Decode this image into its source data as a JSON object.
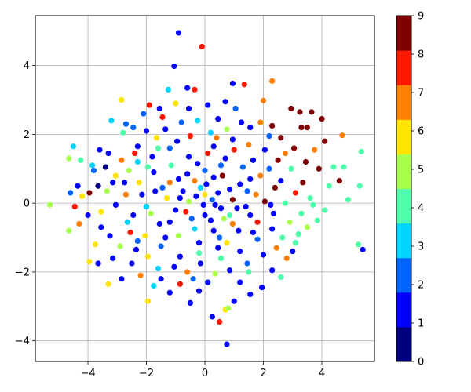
{
  "chart_data": {
    "type": "scatter",
    "title": "",
    "xlabel": "",
    "ylabel": "",
    "xlim": [
      -5.8,
      5.8
    ],
    "ylim": [
      -4.6,
      5.45
    ],
    "xticks": [
      -4,
      -2,
      0,
      2,
      4
    ],
    "xtick_labels": [
      "−4",
      "−2",
      "0",
      "2",
      "4"
    ],
    "yticks": [
      -4,
      -2,
      0,
      2,
      4
    ],
    "ytick_labels": [
      "−4",
      "−2",
      "0",
      "2",
      "4"
    ],
    "grid": true,
    "colormap": "jet",
    "color_range": [
      0,
      9
    ],
    "colorbar_ticks": [
      0,
      1,
      2,
      3,
      4,
      5,
      6,
      7,
      8,
      9
    ],
    "colorbar_tick_labels": [
      "0",
      "1",
      "2",
      "3",
      "4",
      "5",
      "6",
      "7",
      "8",
      "9"
    ],
    "class_colors": [
      "#00007f",
      "#0000ff",
      "#0063ff",
      "#00d4ff",
      "#4dffaa",
      "#aaff4d",
      "#ffe500",
      "#ff7f00",
      "#ff1700",
      "#7f0000"
    ],
    "points": [
      {
        "x": -0.9,
        "y": 4.95,
        "c": 1
      },
      {
        "x": -1.05,
        "y": 3.98,
        "c": 1
      },
      {
        "x": -0.1,
        "y": 4.55,
        "c": 8
      },
      {
        "x": 0.95,
        "y": 3.48,
        "c": 1
      },
      {
        "x": 1.35,
        "y": 3.45,
        "c": 8
      },
      {
        "x": 2.3,
        "y": 3.55,
        "c": 7
      },
      {
        "x": 2.0,
        "y": 2.98,
        "c": 7
      },
      {
        "x": -2.85,
        "y": 3.0,
        "c": 6
      },
      {
        "x": -1.25,
        "y": 3.3,
        "c": 3
      },
      {
        "x": -0.6,
        "y": 3.35,
        "c": 1
      },
      {
        "x": -0.35,
        "y": 3.3,
        "c": 8
      },
      {
        "x": 0.7,
        "y": 2.95,
        "c": 1
      },
      {
        "x": 2.95,
        "y": 2.75,
        "c": 9
      },
      {
        "x": 3.25,
        "y": 2.65,
        "c": 9
      },
      {
        "x": 3.65,
        "y": 2.65,
        "c": 9
      },
      {
        "x": 3.3,
        "y": 2.2,
        "c": 9
      },
      {
        "x": 3.5,
        "y": 2.2,
        "c": 9
      },
      {
        "x": 4.0,
        "y": 2.45,
        "c": 9
      },
      {
        "x": 4.1,
        "y": 1.8,
        "c": 9
      },
      {
        "x": 4.7,
        "y": 1.97,
        "c": 7
      },
      {
        "x": 2.3,
        "y": 2.25,
        "c": 9
      },
      {
        "x": 2.6,
        "y": 1.9,
        "c": 9
      },
      {
        "x": 3.05,
        "y": 1.6,
        "c": 9
      },
      {
        "x": 3.75,
        "y": 1.55,
        "c": 7
      },
      {
        "x": 3.9,
        "y": 1.0,
        "c": 9
      },
      {
        "x": 4.4,
        "y": 1.05,
        "c": 4
      },
      {
        "x": 4.75,
        "y": 1.05,
        "c": 4
      },
      {
        "x": 5.35,
        "y": 1.5,
        "c": 4
      },
      {
        "x": 4.25,
        "y": 0.5,
        "c": 4
      },
      {
        "x": 4.6,
        "y": 0.65,
        "c": 9
      },
      {
        "x": 4.9,
        "y": 0.1,
        "c": 4
      },
      {
        "x": 5.3,
        "y": 0.5,
        "c": 4
      },
      {
        "x": 4.1,
        "y": -0.2,
        "c": 4
      },
      {
        "x": 3.85,
        "y": -0.5,
        "c": 4
      },
      {
        "x": 5.25,
        "y": -1.2,
        "c": 4
      },
      {
        "x": 5.4,
        "y": -1.35,
        "c": 1
      },
      {
        "x": 3.2,
        "y": -0.9,
        "c": 4
      },
      {
        "x": 2.8,
        "y": -1.6,
        "c": 7
      },
      {
        "x": 2.6,
        "y": -2.15,
        "c": 4
      },
      {
        "x": 1.95,
        "y": -2.45,
        "c": 1
      },
      {
        "x": 1.0,
        "y": -2.85,
        "c": 1
      },
      {
        "x": 0.5,
        "y": -3.45,
        "c": 8
      },
      {
        "x": 0.7,
        "y": -3.1,
        "c": 6
      },
      {
        "x": 0.8,
        "y": -3.05,
        "c": 5
      },
      {
        "x": 0.75,
        "y": -4.1,
        "c": 1
      },
      {
        "x": 0.25,
        "y": -3.3,
        "c": 1
      },
      {
        "x": -0.5,
        "y": -2.9,
        "c": 1
      },
      {
        "x": -0.2,
        "y": -2.55,
        "c": 1
      },
      {
        "x": -1.2,
        "y": -2.6,
        "c": 1
      },
      {
        "x": -1.75,
        "y": -2.4,
        "c": 3
      },
      {
        "x": -1.95,
        "y": -2.85,
        "c": 6
      },
      {
        "x": -2.2,
        "y": -2.1,
        "c": 7
      },
      {
        "x": -2.85,
        "y": -2.2,
        "c": 1
      },
      {
        "x": -3.3,
        "y": -2.35,
        "c": 6
      },
      {
        "x": -3.65,
        "y": -1.75,
        "c": 1
      },
      {
        "x": -3.75,
        "y": -1.2,
        "c": 6
      },
      {
        "x": -3.95,
        "y": -1.7,
        "c": 6
      },
      {
        "x": -3.55,
        "y": -0.7,
        "c": 1
      },
      {
        "x": -4.3,
        "y": -0.6,
        "c": 7
      },
      {
        "x": -4.45,
        "y": -0.1,
        "c": 8
      },
      {
        "x": -4.65,
        "y": -0.8,
        "c": 5
      },
      {
        "x": -5.3,
        "y": -0.05,
        "c": 5
      },
      {
        "x": -4.0,
        "y": -0.35,
        "c": 1
      },
      {
        "x": -4.2,
        "y": 0.2,
        "c": 6
      },
      {
        "x": -4.35,
        "y": 0.5,
        "c": 1
      },
      {
        "x": -4.6,
        "y": 0.3,
        "c": 2
      },
      {
        "x": -3.95,
        "y": 0.3,
        "c": 9
      },
      {
        "x": -3.65,
        "y": 0.5,
        "c": 0
      },
      {
        "x": -4.25,
        "y": 1.25,
        "c": 4
      },
      {
        "x": -4.5,
        "y": 1.65,
        "c": 3
      },
      {
        "x": -4.65,
        "y": 1.3,
        "c": 5
      },
      {
        "x": -3.8,
        "y": 0.95,
        "c": 2
      },
      {
        "x": -3.85,
        "y": 1.1,
        "c": 3
      },
      {
        "x": -3.6,
        "y": 1.55,
        "c": 1
      },
      {
        "x": -3.3,
        "y": 1.45,
        "c": 1
      },
      {
        "x": -3.2,
        "y": 2.4,
        "c": 3
      },
      {
        "x": -2.8,
        "y": 2.05,
        "c": 4
      },
      {
        "x": -2.7,
        "y": 2.3,
        "c": 2
      },
      {
        "x": -2.45,
        "y": 2.2,
        "c": 2
      },
      {
        "x": -2.1,
        "y": 2.6,
        "c": 2
      },
      {
        "x": -1.9,
        "y": 2.85,
        "c": 8
      },
      {
        "x": -1.55,
        "y": 2.75,
        "c": 1
      },
      {
        "x": -1.0,
        "y": 2.9,
        "c": 6
      },
      {
        "x": -0.55,
        "y": 2.75,
        "c": 1
      },
      {
        "x": 0.1,
        "y": 2.85,
        "c": 1
      },
      {
        "x": 0.45,
        "y": 2.45,
        "c": 1
      },
      {
        "x": 1.05,
        "y": 2.75,
        "c": 2
      },
      {
        "x": 1.55,
        "y": 2.2,
        "c": 1
      },
      {
        "x": 1.9,
        "y": 2.35,
        "c": 7
      },
      {
        "x": 0.75,
        "y": 2.15,
        "c": 5
      },
      {
        "x": -1.45,
        "y": 2.5,
        "c": 8
      },
      {
        "x": -0.8,
        "y": 2.35,
        "c": 2
      },
      {
        "x": -2.3,
        "y": 1.65,
        "c": 1
      },
      {
        "x": -1.65,
        "y": 1.9,
        "c": 6
      },
      {
        "x": 3.0,
        "y": -1.4,
        "c": 1
      },
      {
        "x": 3.1,
        "y": -1.15,
        "c": 4
      },
      {
        "x": 2.45,
        "y": -1.3,
        "c": 7
      },
      {
        "x": 2.3,
        "y": -1.95,
        "c": 1
      },
      {
        "x": 1.5,
        "y": -2.0,
        "c": 4
      },
      {
        "x": 1.2,
        "y": -2.3,
        "c": 1
      },
      {
        "x": 1.55,
        "y": -2.65,
        "c": 1
      },
      {
        "x": 0.35,
        "y": -2.05,
        "c": 5
      },
      {
        "x": -0.4,
        "y": -2.2,
        "c": 2
      },
      {
        "x": -0.85,
        "y": -2.35,
        "c": 8
      },
      {
        "x": -1.5,
        "y": -2.2,
        "c": 1
      },
      {
        "x": -2.5,
        "y": -1.75,
        "c": 1
      },
      {
        "x": -3.15,
        "y": -1.6,
        "c": 1
      },
      {
        "x": -2.9,
        "y": -1.25,
        "c": 5
      },
      {
        "x": -3.25,
        "y": -0.95,
        "c": 1
      },
      {
        "x": -2.55,
        "y": -0.85,
        "c": 8
      },
      {
        "x": -3.35,
        "y": 0.35,
        "c": 5
      },
      {
        "x": -3.05,
        "y": 0.8,
        "c": 6
      },
      {
        "x": -2.6,
        "y": 0.95,
        "c": 5
      },
      {
        "x": -2.3,
        "y": 1.2,
        "c": 3
      },
      {
        "x": -1.8,
        "y": 1.35,
        "c": 1
      },
      {
        "x": -1.2,
        "y": 1.6,
        "c": 2
      },
      {
        "x": -0.5,
        "y": 1.95,
        "c": 8
      },
      {
        "x": 0.2,
        "y": 2.05,
        "c": 3
      },
      {
        "x": 0.95,
        "y": 1.85,
        "c": 1
      },
      {
        "x": 1.5,
        "y": 1.7,
        "c": 7
      },
      {
        "x": 2.05,
        "y": 1.55,
        "c": 1
      },
      {
        "x": 2.5,
        "y": 1.25,
        "c": 9
      },
      {
        "x": 2.95,
        "y": 1.0,
        "c": 4
      },
      {
        "x": 3.35,
        "y": 0.6,
        "c": 9
      },
      {
        "x": 3.6,
        "y": 0.15,
        "c": 4
      },
      {
        "x": 3.3,
        "y": -0.3,
        "c": 4
      },
      {
        "x": 2.9,
        "y": -0.55,
        "c": 5
      },
      {
        "x": 2.3,
        "y": -0.75,
        "c": 1
      },
      {
        "x": 1.8,
        "y": -1.05,
        "c": 2
      },
      {
        "x": 1.2,
        "y": -1.4,
        "c": 1
      },
      {
        "x": 0.55,
        "y": -1.6,
        "c": 4
      },
      {
        "x": -0.15,
        "y": -1.75,
        "c": 1
      },
      {
        "x": -0.85,
        "y": -1.55,
        "c": 1
      },
      {
        "x": -1.5,
        "y": -1.25,
        "c": 2
      },
      {
        "x": -2.05,
        "y": -0.95,
        "c": 6
      },
      {
        "x": -2.45,
        "y": -0.35,
        "c": 1
      },
      {
        "x": -2.7,
        "y": 0.25,
        "c": 7
      },
      {
        "x": -2.25,
        "y": 0.6,
        "c": 6
      },
      {
        "x": -1.75,
        "y": 0.9,
        "c": 1
      },
      {
        "x": -1.15,
        "y": 1.1,
        "c": 4
      },
      {
        "x": -0.55,
        "y": 1.35,
        "c": 1
      },
      {
        "x": 0.1,
        "y": 1.45,
        "c": 8
      },
      {
        "x": 0.7,
        "y": 1.3,
        "c": 1
      },
      {
        "x": 1.3,
        "y": 1.05,
        "c": 2
      },
      {
        "x": 1.9,
        "y": 0.8,
        "c": 7
      },
      {
        "x": 2.4,
        "y": 0.45,
        "c": 9
      },
      {
        "x": 2.75,
        "y": 0.0,
        "c": 4
      },
      {
        "x": 2.35,
        "y": -0.3,
        "c": 1
      },
      {
        "x": 1.8,
        "y": -0.55,
        "c": 8
      },
      {
        "x": 1.15,
        "y": -0.8,
        "c": 1
      },
      {
        "x": 0.5,
        "y": -1.0,
        "c": 2
      },
      {
        "x": -0.2,
        "y": -1.15,
        "c": 1
      },
      {
        "x": -0.9,
        "y": -0.95,
        "c": 5
      },
      {
        "x": -1.55,
        "y": -0.6,
        "c": 1
      },
      {
        "x": -2.0,
        "y": -0.1,
        "c": 3
      },
      {
        "x": -1.7,
        "y": 0.35,
        "c": 1
      },
      {
        "x": -1.2,
        "y": 0.6,
        "c": 7
      },
      {
        "x": -0.6,
        "y": 0.85,
        "c": 1
      },
      {
        "x": 0.0,
        "y": 0.95,
        "c": 2
      },
      {
        "x": 0.6,
        "y": 0.8,
        "c": 9
      },
      {
        "x": 1.2,
        "y": 0.55,
        "c": 1
      },
      {
        "x": 1.75,
        "y": 0.25,
        "c": 7
      },
      {
        "x": 1.4,
        "y": -0.1,
        "c": 1
      },
      {
        "x": 0.85,
        "y": -0.35,
        "c": 4
      },
      {
        "x": 0.2,
        "y": -0.5,
        "c": 1
      },
      {
        "x": -0.45,
        "y": -0.45,
        "c": 2
      },
      {
        "x": -1.0,
        "y": -0.2,
        "c": 1
      },
      {
        "x": -1.3,
        "y": 0.15,
        "c": 6
      },
      {
        "x": -0.75,
        "y": 0.35,
        "c": 1
      },
      {
        "x": -0.15,
        "y": 0.45,
        "c": 3
      },
      {
        "x": 0.45,
        "y": 0.3,
        "c": 1
      },
      {
        "x": 0.95,
        "y": 0.1,
        "c": 9
      },
      {
        "x": 0.55,
        "y": -0.15,
        "c": 1
      },
      {
        "x": -0.05,
        "y": -0.05,
        "c": 1
      },
      {
        "x": -0.55,
        "y": 0.05,
        "c": 5
      },
      {
        "x": -0.3,
        "y": 0.2,
        "c": 1
      },
      {
        "x": 0.25,
        "y": 0.1,
        "c": 2
      },
      {
        "x": 0.05,
        "y": 0.55,
        "c": 1
      },
      {
        "x": -1.6,
        "y": -1.9,
        "c": 3
      },
      {
        "x": -2.35,
        "y": -1.35,
        "c": 1
      },
      {
        "x": -3.55,
        "y": -0.25,
        "c": 6
      },
      {
        "x": -3.05,
        "y": -0.05,
        "c": 1
      },
      {
        "x": -2.85,
        "y": 1.25,
        "c": 7
      },
      {
        "x": -3.4,
        "y": 1.05,
        "c": 0
      },
      {
        "x": -2.0,
        "y": 2.1,
        "c": 1
      },
      {
        "x": -1.35,
        "y": 2.15,
        "c": 1
      },
      {
        "x": -0.25,
        "y": 2.4,
        "c": 3
      },
      {
        "x": 0.4,
        "y": 1.9,
        "c": 7
      },
      {
        "x": 1.25,
        "y": 2.35,
        "c": 1
      },
      {
        "x": 2.2,
        "y": 1.95,
        "c": 2
      },
      {
        "x": 2.75,
        "y": 1.45,
        "c": 7
      },
      {
        "x": 3.45,
        "y": 1.2,
        "c": 9
      },
      {
        "x": 3.1,
        "y": 0.3,
        "c": 8
      },
      {
        "x": 3.7,
        "y": -0.05,
        "c": 4
      },
      {
        "x": 3.5,
        "y": -0.7,
        "c": 5
      },
      {
        "x": 2.65,
        "y": -1.0,
        "c": 4
      },
      {
        "x": 2.0,
        "y": -1.5,
        "c": 1
      },
      {
        "x": 1.45,
        "y": -1.75,
        "c": 2
      },
      {
        "x": 0.85,
        "y": -1.95,
        "c": 1
      },
      {
        "x": 0.1,
        "y": -2.3,
        "c": 1
      },
      {
        "x": -0.6,
        "y": -2.0,
        "c": 7
      },
      {
        "x": -1.05,
        "y": -1.85,
        "c": 1
      },
      {
        "x": -1.95,
        "y": -1.55,
        "c": 6
      },
      {
        "x": -2.65,
        "y": -0.55,
        "c": 3
      },
      {
        "x": -3.15,
        "y": 0.6,
        "c": 1
      },
      {
        "x": -2.4,
        "y": 1.45,
        "c": 8
      },
      {
        "x": -1.6,
        "y": 1.6,
        "c": 4
      },
      {
        "x": -0.95,
        "y": 1.8,
        "c": 1
      },
      {
        "x": 0.3,
        "y": 1.65,
        "c": 1
      },
      {
        "x": 1.0,
        "y": 1.55,
        "c": 8
      },
      {
        "x": 1.65,
        "y": 1.25,
        "c": 1
      },
      {
        "x": 2.2,
        "y": 1.0,
        "c": 2
      },
      {
        "x": 2.6,
        "y": 0.65,
        "c": 1
      },
      {
        "x": 2.05,
        "y": 0.05,
        "c": 9
      },
      {
        "x": 1.55,
        "y": -0.35,
        "c": 1
      },
      {
        "x": 0.95,
        "y": -0.6,
        "c": 7
      },
      {
        "x": 0.3,
        "y": -0.8,
        "c": 1
      },
      {
        "x": -0.35,
        "y": -0.75,
        "c": 3
      },
      {
        "x": -1.2,
        "y": -0.55,
        "c": 1
      },
      {
        "x": -1.85,
        "y": -0.3,
        "c": 5
      },
      {
        "x": -2.15,
        "y": 0.25,
        "c": 1
      },
      {
        "x": -1.45,
        "y": 0.45,
        "c": 2
      },
      {
        "x": -0.9,
        "y": 0.7,
        "c": 1
      },
      {
        "x": -0.35,
        "y": 0.65,
        "c": 7
      },
      {
        "x": 0.3,
        "y": 0.75,
        "c": 1
      },
      {
        "x": 0.85,
        "y": 0.4,
        "c": 1
      },
      {
        "x": 1.45,
        "y": 0.35,
        "c": 2
      },
      {
        "x": 1.1,
        "y": -0.15,
        "c": 1
      },
      {
        "x": 0.65,
        "y": -0.45,
        "c": 5
      },
      {
        "x": 0.0,
        "y": -0.35,
        "c": 1
      },
      {
        "x": -0.65,
        "y": -0.25,
        "c": 8
      },
      {
        "x": -0.85,
        "y": 0.15,
        "c": 1
      },
      {
        "x": 0.0,
        "y": 0.25,
        "c": 6
      },
      {
        "x": 0.35,
        "y": -0.05,
        "c": 1
      },
      {
        "x": -0.2,
        "y": -1.45,
        "c": 4
      },
      {
        "x": 0.45,
        "y": -1.3,
        "c": 1
      },
      {
        "x": -1.35,
        "y": -1.0,
        "c": 1
      },
      {
        "x": -2.3,
        "y": -1.1,
        "c": 2
      },
      {
        "x": -2.75,
        "y": 0.6,
        "c": 1
      },
      {
        "x": -1.95,
        "y": 1.05,
        "c": 4
      },
      {
        "x": -0.25,
        "y": 1.15,
        "c": 1
      },
      {
        "x": 0.55,
        "y": 1.1,
        "c": 2
      },
      {
        "x": 1.55,
        "y": 0.7,
        "c": 1
      },
      {
        "x": 2.25,
        "y": -0.05,
        "c": 1
      },
      {
        "x": 1.65,
        "y": -0.85,
        "c": 1
      },
      {
        "x": 0.75,
        "y": -1.15,
        "c": 6
      }
    ]
  }
}
